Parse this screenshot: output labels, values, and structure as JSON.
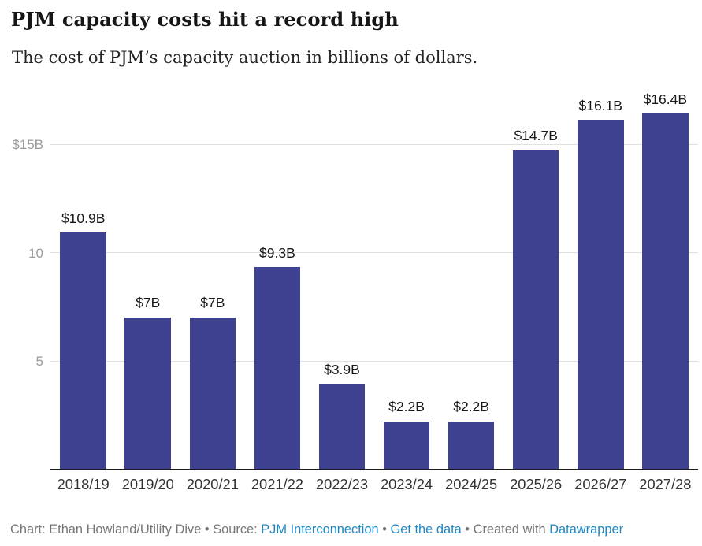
{
  "header": {
    "title": "PJM capacity costs hit a record high",
    "subtitle": "The cost of PJM’s capacity auction in billions of dollars."
  },
  "chart_data": {
    "type": "bar",
    "title": "PJM capacity costs hit a record high",
    "subtitle": "The cost of PJM’s capacity auction in billions of dollars.",
    "categories": [
      "2018/19",
      "2019/20",
      "2020/21",
      "2021/22",
      "2022/23",
      "2023/24",
      "2024/25",
      "2025/26",
      "2026/27",
      "2027/28"
    ],
    "values": [
      10.9,
      7,
      7,
      9.3,
      3.9,
      2.2,
      2.2,
      14.7,
      16.1,
      16.4
    ],
    "value_labels": [
      "$10.9B",
      "$7B",
      "$7B",
      "$9.3B",
      "$3.9B",
      "$2.2B",
      "$2.2B",
      "$14.7B",
      "$16.1B",
      "$16.4B"
    ],
    "unit": "billions of dollars",
    "xlabel": "",
    "ylabel": "",
    "ylim": [
      0,
      17.5
    ],
    "y_ticks": [
      {
        "value": 5,
        "label": "5"
      },
      {
        "value": 10,
        "label": "10"
      },
      {
        "value": 15,
        "label": "$15B"
      }
    ],
    "grid": "horizontal",
    "legend": "none",
    "bar_color": "#3e4190",
    "gridline_color": "#e0e0e0",
    "axis_line_color": "#1a1a1a"
  },
  "footer": {
    "credit_prefix": "Chart: ",
    "credit_text": "Ethan Howland/Utility Dive",
    "separator": " • ",
    "source_prefix": "Source: ",
    "source_link": "PJM Interconnection",
    "data_link": "Get the data",
    "created_prefix": "Created with ",
    "created_link": "Datawrapper",
    "link_color": "#1e87c5"
  }
}
